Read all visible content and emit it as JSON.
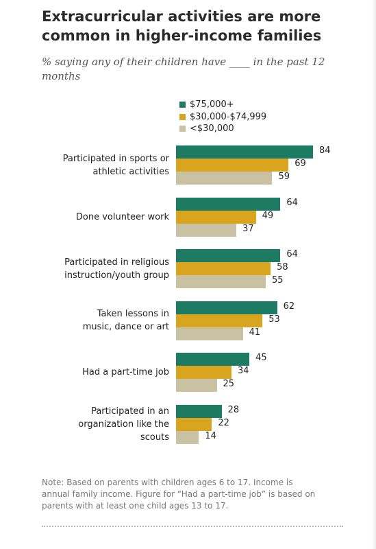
{
  "chart_data": {
    "type": "bar",
    "orientation": "horizontal",
    "title": "Extracurricular activities are more common in higher-income families",
    "subtitle": "% saying any of their children have ____ in the past 12 months",
    "categories": [
      [
        "Participated in sports or",
        "athletic activities"
      ],
      [
        "Done volunteer work"
      ],
      [
        "Participated in religious",
        "instruction/youth group"
      ],
      [
        "Taken lessons in",
        "music, dance or art"
      ],
      [
        "Had a part-time job"
      ],
      [
        "Participated in an",
        "organization like the",
        "scouts"
      ]
    ],
    "series": [
      {
        "name": "$75,000+",
        "color": "#1e7b63",
        "values": [
          84,
          64,
          64,
          62,
          45,
          28
        ]
      },
      {
        "name": "$30,000-$74,999",
        "color": "#d9a51f",
        "values": [
          69,
          49,
          58,
          53,
          34,
          22
        ]
      },
      {
        "name": "<$30,000",
        "color": "#c8c2a3",
        "values": [
          59,
          37,
          55,
          41,
          25,
          14
        ]
      }
    ],
    "legend_position": "top",
    "xlim": [
      0,
      84
    ],
    "grid": false
  },
  "note": [
    "Note: Based on parents with children ages 6 to 17. Income is",
    "annual family income. Figure for “Had a part-time job” is based on",
    "parents with at least one child ages 13 to 17."
  ]
}
